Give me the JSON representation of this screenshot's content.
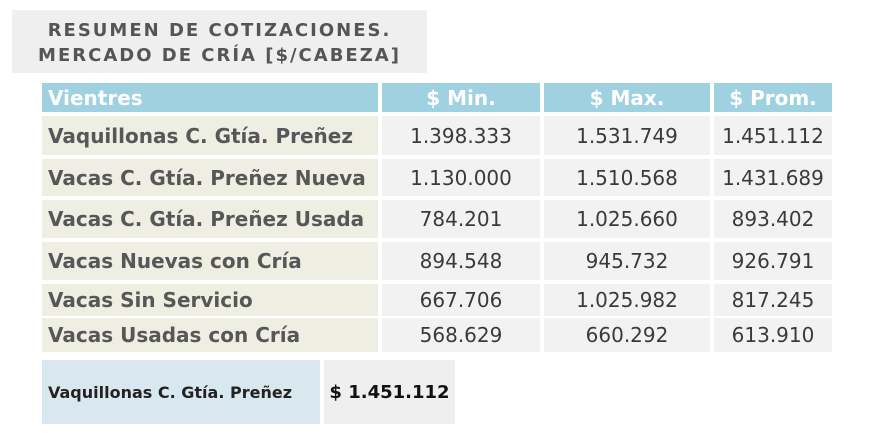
{
  "title": {
    "line1": "RESUMEN DE COTIZACIONES.",
    "line2": "MERCADO DE CRÍA [$/CABEZA]"
  },
  "table": {
    "headers": [
      "Vientres",
      "$ Min.",
      "$ Max.",
      "$ Prom."
    ],
    "rows": [
      [
        "Vaquillonas C. Gtía. Preñez",
        "1.398.333",
        "1.531.749",
        "1.451.112"
      ],
      [
        "Vacas C. Gtía. Preñez Nueva",
        "1.130.000",
        "1.510.568",
        "1.431.689"
      ],
      [
        "Vacas C. Gtía. Preñez Usada",
        "784.201",
        "1.025.660",
        "893.402"
      ],
      [
        "Vacas Nuevas con Cría",
        "894.548",
        "945.732",
        "926.791"
      ],
      [
        "Vacas Sin Servicio",
        "667.706",
        "1.025.982",
        "817.245"
      ],
      [
        "Vacas Usadas con Cría",
        "568.629",
        "660.292",
        "613.910"
      ]
    ]
  },
  "summary": {
    "label": "Vaquillonas C. Gtía. Preñez",
    "value": "$  1.451.112"
  },
  "colors": {
    "header_bg": "#9fd1e0",
    "name_bg": "#efeee3",
    "value_bg": "#f2f2f2",
    "summary_label_bg": "#d9e8ef"
  }
}
